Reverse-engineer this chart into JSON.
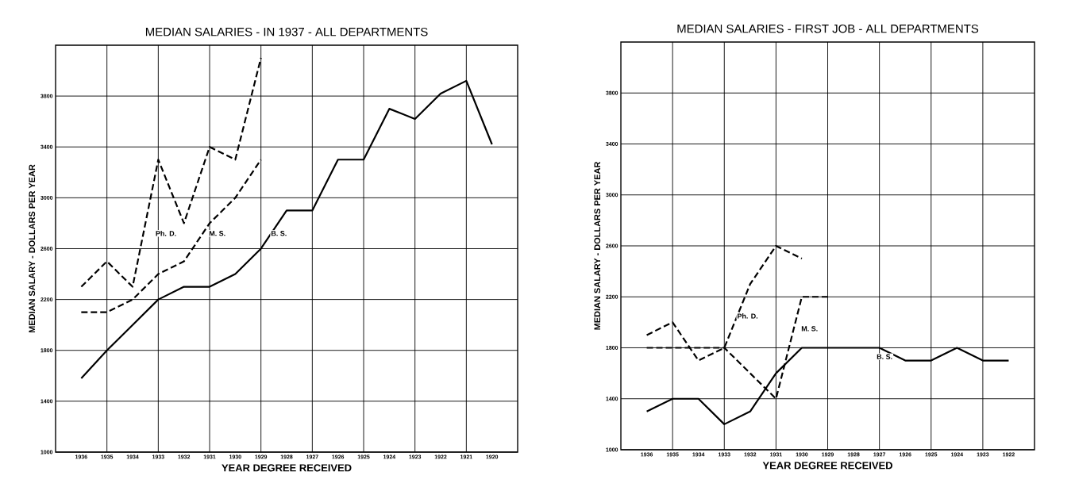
{
  "chart_data": [
    {
      "type": "line",
      "title": "MEDIAN SALARIES - IN 1937 - ALL DEPARTMENTS",
      "xlabel": "YEAR DEGREE RECEIVED",
      "ylabel": "MEDIAN SALARY - DOLLARS PER YEAR",
      "categories": [
        "1936",
        "1935",
        "1934",
        "1933",
        "1932",
        "1931",
        "1930",
        "1929",
        "1928",
        "1927",
        "1926",
        "1925",
        "1924",
        "1923",
        "1922",
        "1921",
        "1920"
      ],
      "series": [
        {
          "name": "Ph. D.",
          "color": "#000000",
          "line_style": "dashed",
          "values": [
            2300,
            2500,
            2300,
            3300,
            2800,
            3400,
            3300,
            4100,
            null,
            null,
            null,
            null,
            null,
            null,
            null,
            null,
            null
          ]
        },
        {
          "name": "M. S.",
          "color": "#000000",
          "line_style": "dashed",
          "values": [
            2100,
            2100,
            2200,
            2400,
            2500,
            2800,
            3000,
            3300,
            null,
            null,
            null,
            null,
            null,
            null,
            null,
            null,
            null
          ]
        },
        {
          "name": "B. S.",
          "color": "#000000",
          "line_style": "solid",
          "values": [
            1580,
            1800,
            2000,
            2200,
            2300,
            2300,
            2400,
            2600,
            2900,
            2900,
            3300,
            3300,
            3700,
            3620,
            3820,
            3920,
            3420
          ]
        }
      ],
      "ylim": [
        1000,
        4200
      ],
      "yticks": [
        1000,
        1400,
        1800,
        2200,
        2600,
        3000,
        3400,
        3800
      ],
      "grid": true
    },
    {
      "type": "line",
      "title": "MEDIAN SALARIES - FIRST JOB - ALL DEPARTMENTS",
      "xlabel": "YEAR DEGREE RECEIVED",
      "ylabel": "MEDIAN SALARY - DOLLARS PER YEAR",
      "categories": [
        "1936",
        "1935",
        "1934",
        "1933",
        "1932",
        "1931",
        "1930",
        "1929",
        "1928",
        "1927",
        "1926",
        "1925",
        "1924",
        "1923",
        "1922"
      ],
      "series": [
        {
          "name": "Ph. D.",
          "color": "#000000",
          "line_style": "dashed",
          "values": [
            1900,
            2000,
            1700,
            1800,
            2300,
            2600,
            2500,
            null,
            null,
            null,
            null,
            null,
            null,
            null,
            null
          ]
        },
        {
          "name": "M. S.",
          "color": "#000000",
          "line_style": "dashed",
          "values": [
            1800,
            1800,
            1800,
            1800,
            1600,
            1400,
            2200,
            2200,
            null,
            null,
            null,
            null,
            null,
            null,
            null
          ]
        },
        {
          "name": "B. S.",
          "color": "#000000",
          "line_style": "solid",
          "values": [
            1300,
            1400,
            1400,
            1200,
            1300,
            1600,
            1800,
            1800,
            1800,
            1800,
            1700,
            1700,
            1800,
            1700,
            1700
          ]
        }
      ],
      "ylim": [
        1000,
        4200
      ],
      "yticks": [
        1000,
        1400,
        1800,
        2200,
        2600,
        3000,
        3400,
        3800
      ],
      "grid": true
    }
  ]
}
